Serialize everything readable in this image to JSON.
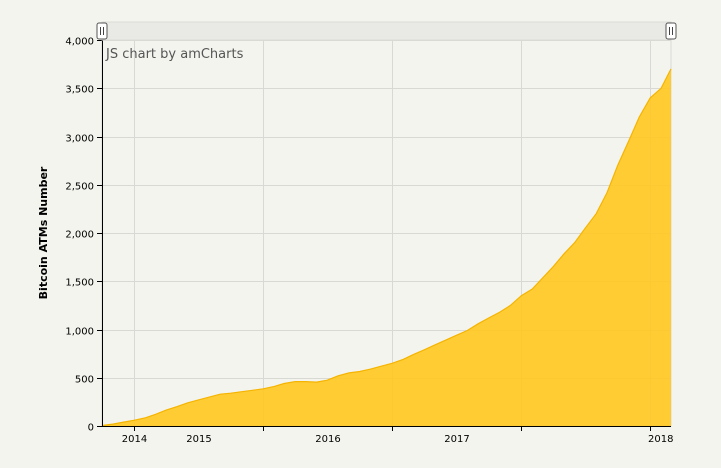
{
  "credit_label": "JS chart by amCharts",
  "colors": {
    "background": "#f4f4ef",
    "plot_background": "#f4f4ef",
    "fill": "#ffc824",
    "stroke": "#f5b400",
    "grid": "#d8d8d4",
    "scrollbar": "#e9e9e5",
    "scrollbar_grip": "#ffffff"
  },
  "chart_data": {
    "type": "area",
    "ylabel": "Bitcoin ATMs Number",
    "xlabel": "",
    "ylim": [
      0,
      4000
    ],
    "y_ticks": [
      0,
      500,
      1000,
      1500,
      2000,
      2500,
      3000,
      3500,
      4000
    ],
    "y_tick_labels": [
      "0",
      "500",
      "1,000",
      "1,500",
      "2,000",
      "2,500",
      "3,000",
      "3,500",
      "4,000"
    ],
    "x_ticks": [
      "2014",
      "2015",
      "2016",
      "2017",
      "2018"
    ],
    "x_range": [
      "2013-10-01",
      "2018-03-01"
    ],
    "grid": true,
    "scrollbar": true,
    "series": [
      {
        "x": [
          "2013-10-01",
          "2013-11-01",
          "2013-12-01",
          "2014-01-01",
          "2014-02-01",
          "2014-03-01",
          "2014-04-01",
          "2014-05-01",
          "2014-06-01",
          "2014-07-01",
          "2014-08-01",
          "2014-09-01",
          "2014-10-01",
          "2014-11-01",
          "2014-12-01",
          "2015-01-01",
          "2015-02-01",
          "2015-03-01",
          "2015-04-01",
          "2015-05-01",
          "2015-06-01",
          "2015-07-01",
          "2015-08-01",
          "2015-09-01",
          "2015-10-01",
          "2015-11-01",
          "2015-12-01",
          "2016-01-01",
          "2016-02-01",
          "2016-03-01",
          "2016-04-01",
          "2016-05-01",
          "2016-06-01",
          "2016-07-01",
          "2016-08-01",
          "2016-09-01",
          "2016-10-01",
          "2016-11-01",
          "2016-12-01",
          "2017-01-01",
          "2017-02-01",
          "2017-03-01",
          "2017-04-01",
          "2017-05-01",
          "2017-06-01",
          "2017-07-01",
          "2017-08-01",
          "2017-09-01",
          "2017-10-01",
          "2017-11-01",
          "2017-12-01",
          "2018-01-01",
          "2018-02-01",
          "2018-03-01"
        ],
        "values": [
          5,
          20,
          40,
          60,
          85,
          120,
          165,
          200,
          240,
          270,
          300,
          330,
          340,
          355,
          370,
          385,
          410,
          440,
          460,
          460,
          455,
          475,
          520,
          550,
          565,
          590,
          620,
          650,
          690,
          740,
          790,
          840,
          890,
          940,
          990,
          1060,
          1120,
          1180,
          1250,
          1350,
          1420,
          1530,
          1650,
          1780,
          1900,
          2050,
          2200,
          2420,
          2700,
          2950,
          3200,
          3400,
          3500,
          3700
        ]
      }
    ]
  }
}
